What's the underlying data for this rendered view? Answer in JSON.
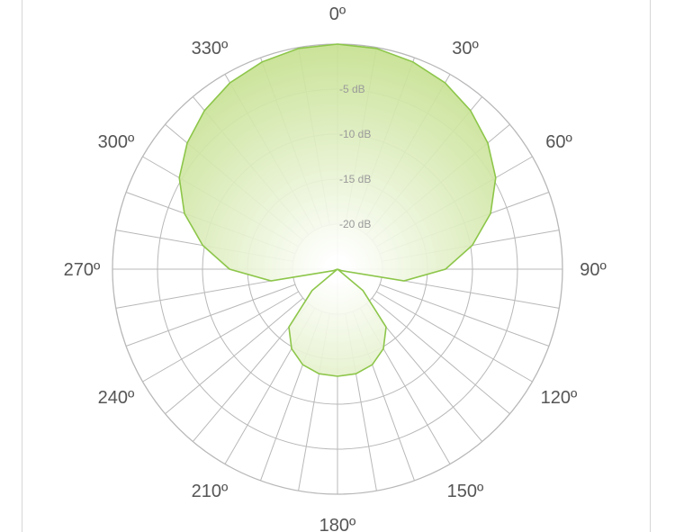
{
  "chart_data": {
    "type": "polar",
    "angle_unit": "deg",
    "radial_unit": "dB",
    "radial_range": [
      -25,
      0
    ],
    "radial_ticks": [
      -5,
      -10,
      -15,
      -20
    ],
    "angle_labels": [
      "0º",
      "30º",
      "60º",
      "90º",
      "120º",
      "150º",
      "180º",
      "210º",
      "240º",
      "270º",
      "300º",
      "330º"
    ],
    "db_labels": [
      "-5 dB",
      "-10 dB",
      "-15 dB",
      "-20 dB"
    ],
    "grid": true,
    "series": [
      {
        "angles": [
          0,
          10,
          20,
          30,
          40,
          50,
          60,
          70,
          80,
          90,
          100,
          110,
          120,
          130,
          140,
          150,
          160,
          170,
          180,
          190,
          200,
          210,
          220,
          230,
          240,
          250,
          260,
          270,
          280,
          290,
          300,
          310,
          320,
          330,
          340,
          350
        ],
        "values": [
          0,
          -0.1,
          -0.5,
          -1.1,
          -2.0,
          -3.2,
          -4.7,
          -6.9,
          -9.8,
          -13.0,
          -17.5,
          -24.5,
          -25,
          -21.3,
          -16.6,
          -14.8,
          -13.7,
          -13.2,
          -13.1,
          -13.2,
          -13.7,
          -14.8,
          -16.6,
          -21.3,
          -25,
          -24.5,
          -17.5,
          -13.0,
          -9.8,
          -6.9,
          -4.7,
          -3.2,
          -2.0,
          -1.1,
          -0.5,
          -0.1
        ]
      }
    ],
    "colors": {
      "fill_outer": "#c5e08f",
      "fill_inner": "#ffffff",
      "stroke": "#8dc64a",
      "grid": "#b8b8b8"
    }
  }
}
